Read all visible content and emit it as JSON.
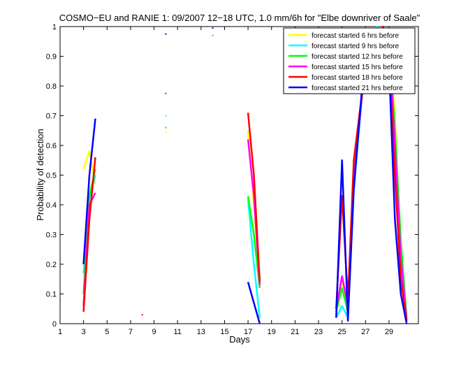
{
  "chart_data": {
    "type": "line",
    "title": "COSMO−EU and RANIE 1: 09/2007 12−18 UTC, 1.0 mm/6h for \"Elbe downriver of Saale\"",
    "xlabel": "Days",
    "ylabel": "Probability of detection",
    "xlim": [
      1,
      31.5
    ],
    "ylim": [
      0,
      1
    ],
    "xticks": [
      1,
      3,
      5,
      7,
      9,
      11,
      13,
      15,
      17,
      19,
      21,
      23,
      25,
      27,
      29
    ],
    "yticks": [
      0,
      0.1,
      0.2,
      0.3,
      0.4,
      0.5,
      0.6,
      0.7,
      0.8,
      0.9,
      1
    ],
    "ytick_labels": [
      "0",
      "0.1",
      "0.2",
      "0.3",
      "0.4",
      "0.5",
      "0.6",
      "0.7",
      "0.8",
      "0.9",
      "1"
    ],
    "grid": false,
    "legend_position": "top-right",
    "series": [
      {
        "name": "forecast started 6 hrs before",
        "color": "#ffff00",
        "segments": [
          [
            [
              3,
              0.52
            ],
            [
              3.5,
              0.58
            ],
            [
              4,
              0.47
            ]
          ],
          [
            [
              17,
              0.65
            ],
            [
              17.5,
              0.4
            ],
            [
              18,
              0.14
            ]
          ],
          [
            [
              24.5,
              0.05
            ],
            [
              25,
              0.15
            ],
            [
              25.5,
              0.05
            ],
            [
              26,
              0.5
            ],
            [
              27,
              0.87
            ],
            [
              27.5,
              0.95
            ],
            [
              28,
              0.96
            ],
            [
              28.5,
              0.98
            ],
            [
              29,
              0.96
            ],
            [
              29.5,
              0.7
            ],
            [
              30,
              0.2
            ],
            [
              30.5,
              0.01
            ]
          ]
        ],
        "points": [
          [
            10,
            0.645
          ]
        ]
      },
      {
        "name": "forecast started 9 hrs before",
        "color": "#00ffff",
        "segments": [
          [
            [
              3,
              0.17
            ],
            [
              3.5,
              0.42
            ],
            [
              4,
              0.5
            ]
          ],
          [
            [
              17,
              0.42
            ],
            [
              17.5,
              0.2
            ],
            [
              18,
              0.02
            ]
          ],
          [
            [
              24.5,
              0.02
            ],
            [
              25,
              0.06
            ],
            [
              25.5,
              0.02
            ],
            [
              26,
              0.45
            ],
            [
              27,
              0.9
            ],
            [
              27.5,
              0.97
            ],
            [
              28,
              1.0
            ],
            [
              28.5,
              0.97
            ],
            [
              29,
              0.95
            ],
            [
              29.5,
              0.65
            ],
            [
              30,
              0.25
            ],
            [
              30.5,
              0.01
            ]
          ]
        ],
        "points": [
          [
            10,
            0.7
          ]
        ]
      },
      {
        "name": "forecast started 12 hrs before",
        "color": "#00ff00",
        "segments": [
          [
            [
              3,
              0.1
            ],
            [
              3.5,
              0.43
            ],
            [
              4,
              0.52
            ]
          ],
          [
            [
              17,
              0.43
            ],
            [
              17.5,
              0.3
            ],
            [
              18,
              0.12
            ]
          ],
          [
            [
              24.5,
              0.04
            ],
            [
              25,
              0.12
            ],
            [
              25.5,
              0.04
            ],
            [
              26,
              0.5
            ],
            [
              27,
              0.88
            ],
            [
              27.5,
              0.93
            ],
            [
              28,
              0.96
            ],
            [
              28.5,
              0.95
            ],
            [
              29,
              0.94
            ],
            [
              29.5,
              0.66
            ],
            [
              30,
              0.28
            ],
            [
              30.5,
              0.02
            ]
          ]
        ],
        "points": [
          [
            10,
            0.66
          ],
          [
            14,
            0.97
          ]
        ]
      },
      {
        "name": "forecast started 15 hrs before",
        "color": "#ff00ff",
        "segments": [
          [
            [
              3,
              0.06
            ],
            [
              3.5,
              0.4
            ],
            [
              4,
              0.44
            ]
          ],
          [
            [
              17,
              0.62
            ],
            [
              17.5,
              0.43
            ],
            [
              18,
              0.13
            ]
          ],
          [
            [
              24.5,
              0.05
            ],
            [
              25,
              0.16
            ],
            [
              25.5,
              0.06
            ],
            [
              26,
              0.48
            ],
            [
              27,
              0.89
            ],
            [
              27.5,
              0.95
            ],
            [
              28,
              0.975
            ],
            [
              28.5,
              0.965
            ],
            [
              29,
              0.95
            ],
            [
              29.5,
              0.6
            ],
            [
              30,
              0.22
            ],
            [
              30.5,
              0.01
            ]
          ]
        ],
        "points": []
      },
      {
        "name": "forecast started 18 hrs before",
        "color": "#ff0000",
        "segments": [
          [
            [
              3,
              0.04
            ],
            [
              3.5,
              0.35
            ],
            [
              4,
              0.56
            ]
          ],
          [
            [
              17,
              0.71
            ],
            [
              17.5,
              0.5
            ],
            [
              18,
              0.14
            ]
          ],
          [
            [
              24.5,
              0.05
            ],
            [
              25,
              0.43
            ],
            [
              25.5,
              0.08
            ],
            [
              26,
              0.55
            ],
            [
              27,
              0.87
            ],
            [
              27.5,
              0.91
            ],
            [
              28,
              0.95
            ],
            [
              28.5,
              1.0
            ],
            [
              29,
              0.9
            ],
            [
              29.5,
              0.5
            ],
            [
              30,
              0.15
            ],
            [
              30.5,
              0.01
            ]
          ]
        ],
        "points": [
          [
            8,
            0.03
          ],
          [
            10,
            0.775
          ]
        ]
      },
      {
        "name": "forecast started 21 hrs before",
        "color": "#0000ff",
        "segments": [
          [
            [
              3,
              0.2
            ],
            [
              3.5,
              0.5
            ],
            [
              4,
              0.69
            ]
          ],
          [
            [
              17,
              0.14
            ],
            [
              17.5,
              0.07
            ],
            [
              18,
              0.0
            ]
          ],
          [
            [
              24.5,
              0.02
            ],
            [
              25,
              0.55
            ],
            [
              25.5,
              0.01
            ],
            [
              26,
              0.45
            ],
            [
              27,
              0.94
            ],
            [
              27.5,
              0.88
            ],
            [
              28,
              0.83
            ],
            [
              28.5,
              0.85
            ],
            [
              29,
              0.87
            ],
            [
              29.5,
              0.35
            ],
            [
              30,
              0.1
            ],
            [
              30.5,
              0.0
            ]
          ]
        ],
        "points": [
          [
            10,
            0.975
          ],
          [
            14,
            0.995
          ]
        ]
      }
    ]
  }
}
